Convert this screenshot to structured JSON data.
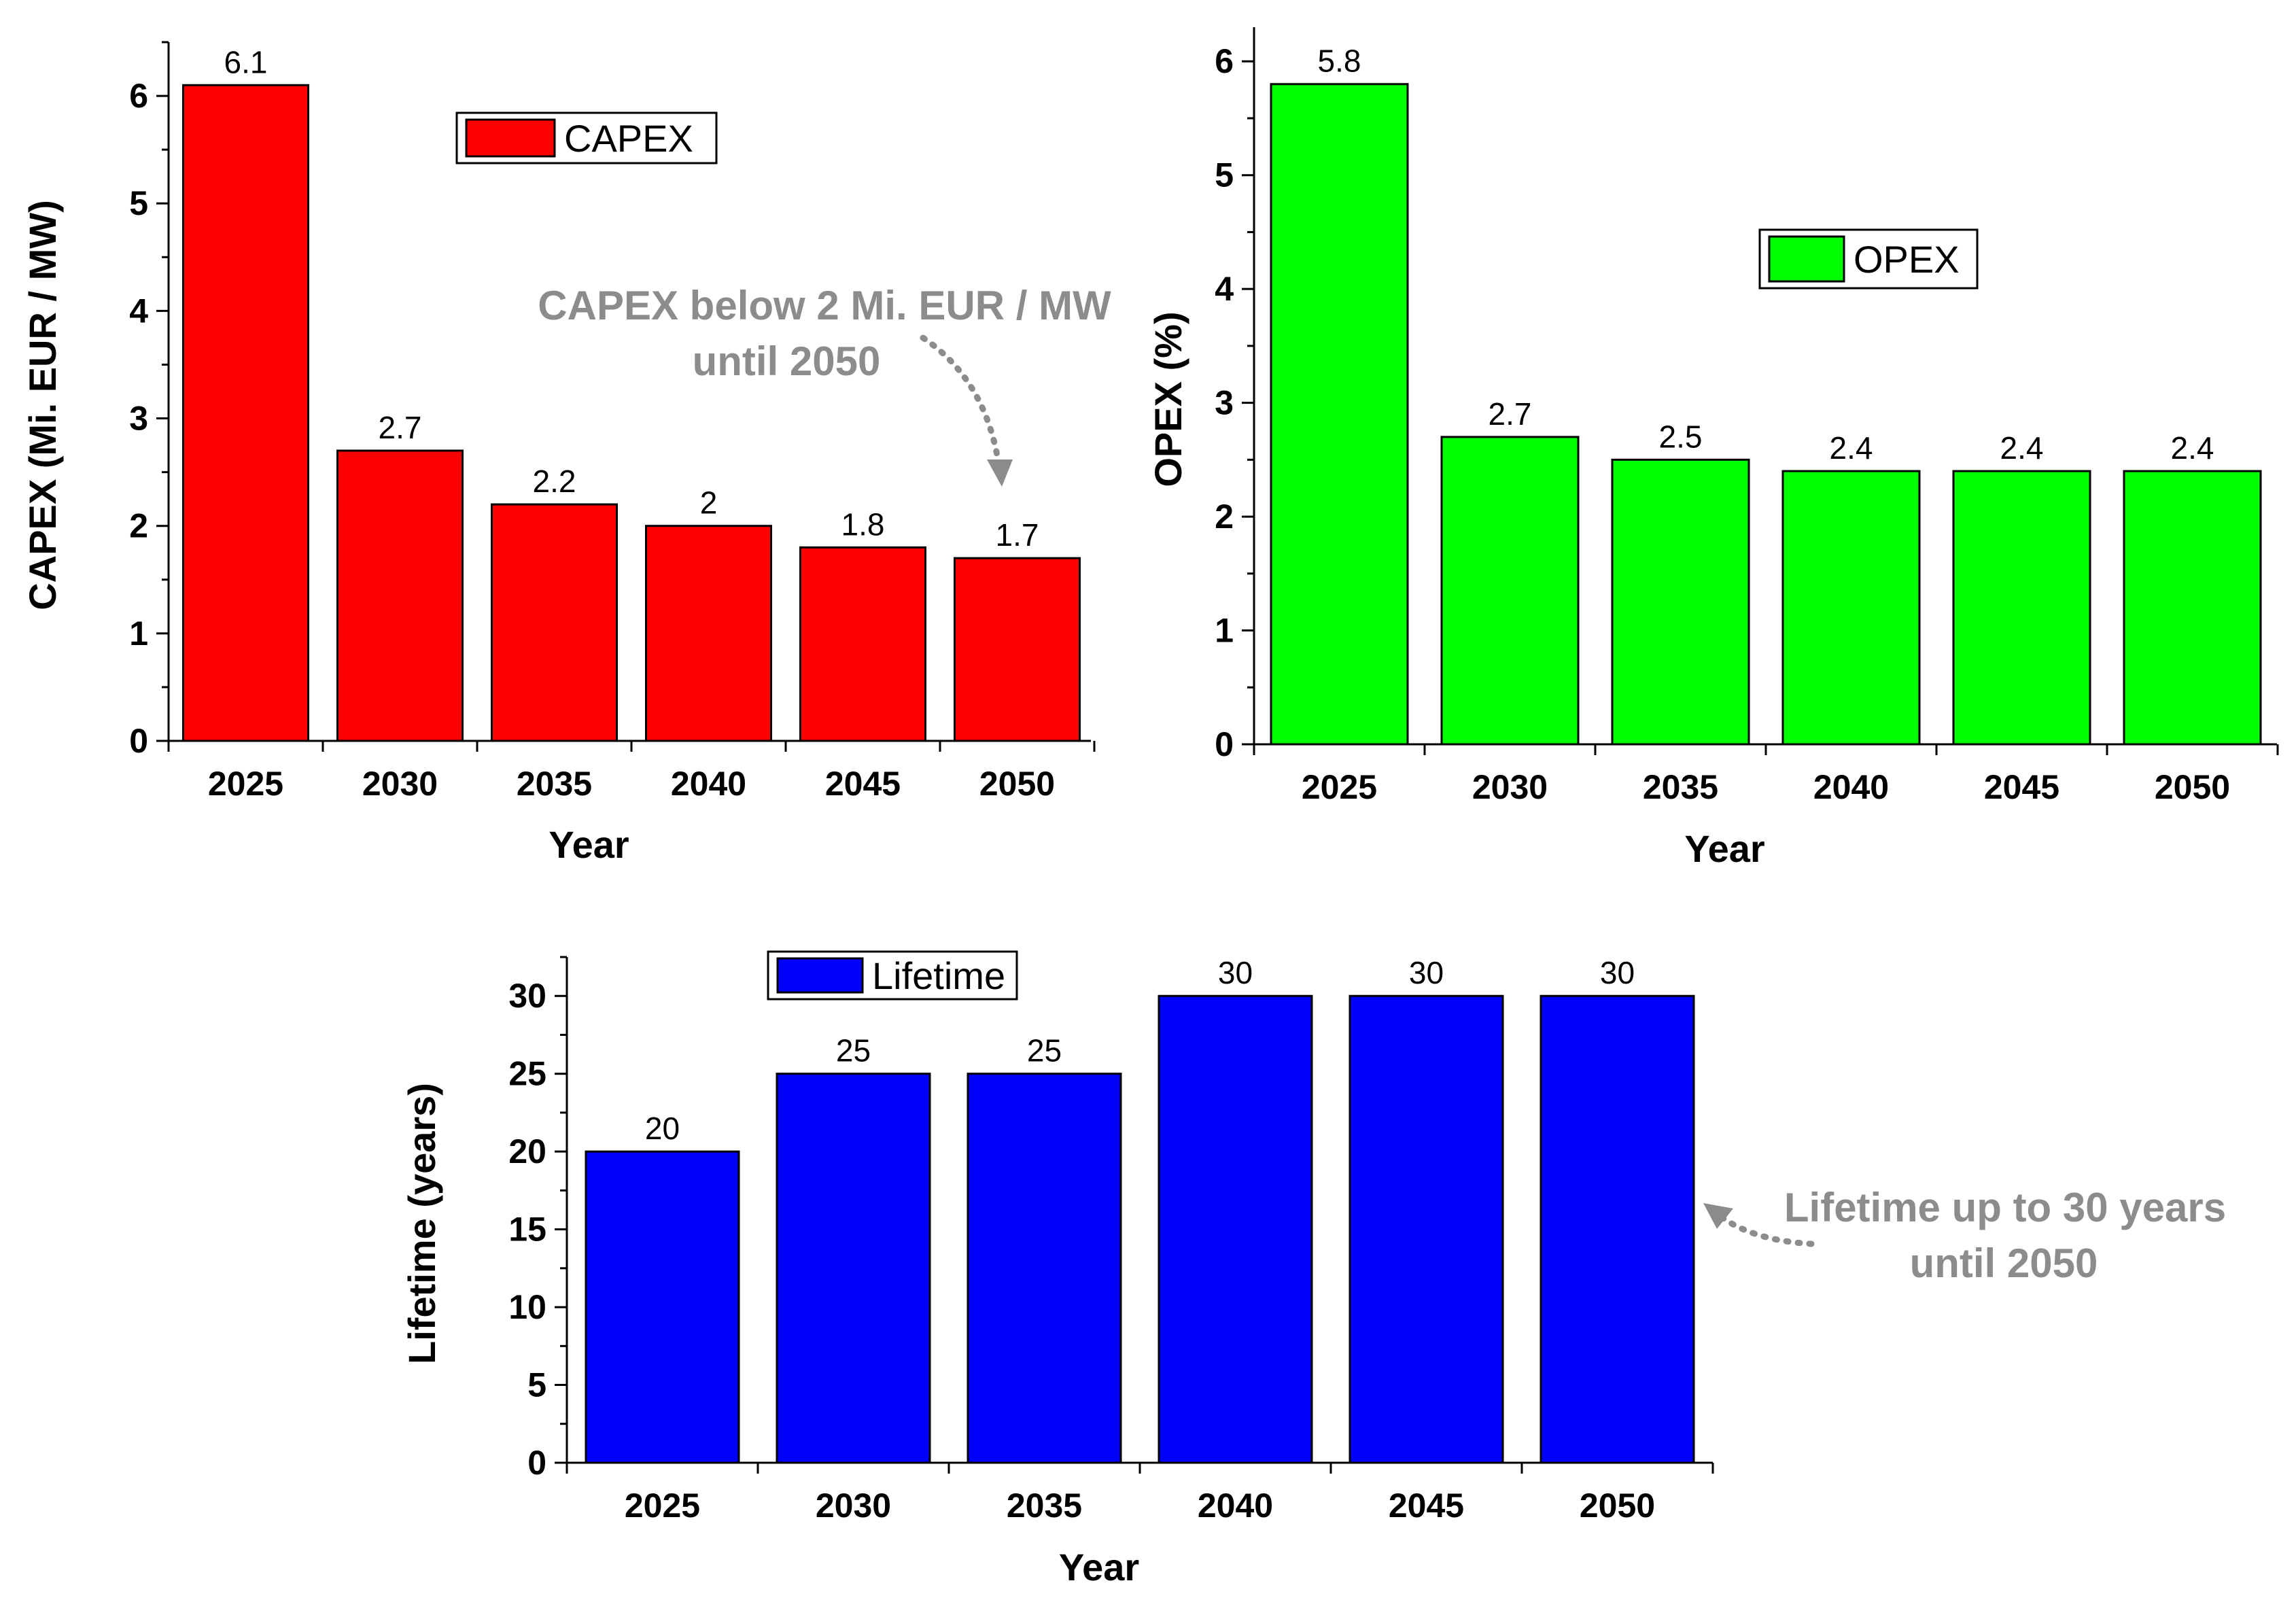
{
  "chart_data": [
    {
      "id": "capex",
      "type": "bar",
      "categories": [
        "2025",
        "2030",
        "2035",
        "2040",
        "2045",
        "2050"
      ],
      "values": [
        6.1,
        2.7,
        2.2,
        2,
        1.8,
        1.7
      ],
      "data_labels": [
        "6.1",
        "2.7",
        "2.2",
        "2",
        "1.8",
        "1.7"
      ],
      "xlabel": "Year",
      "ylabel": "CAPEX (Mi. EUR / MW)",
      "ylim": [
        0,
        6.5
      ],
      "yticks": [
        0,
        1,
        2,
        3,
        4,
        5,
        6
      ],
      "legend": [
        "CAPEX"
      ],
      "legend_position": "top-center",
      "color": "#ff0000",
      "grid": false,
      "annotation": [
        "CAPEX below 2 Mi. EUR / MW",
        "until 2050"
      ]
    },
    {
      "id": "opex",
      "type": "bar",
      "categories": [
        "2025",
        "2030",
        "2035",
        "2040",
        "2045",
        "2050"
      ],
      "values": [
        5.8,
        2.7,
        2.5,
        2.4,
        2.4,
        2.4
      ],
      "data_labels": [
        "5.8",
        "2.7",
        "2.5",
        "2.4",
        "2.4",
        "2.4"
      ],
      "xlabel": "Year",
      "ylabel": "OPEX (%)",
      "ylim": [
        0,
        6.3
      ],
      "yticks": [
        0,
        1,
        2,
        3,
        4,
        5,
        6
      ],
      "legend": [
        "OPEX"
      ],
      "legend_position": "center-right",
      "color": "#00ff00",
      "grid": false
    },
    {
      "id": "lifetime",
      "type": "bar",
      "categories": [
        "2025",
        "2030",
        "2035",
        "2040",
        "2045",
        "2050"
      ],
      "values": [
        20,
        25,
        25,
        30,
        30,
        30
      ],
      "data_labels": [
        "20",
        "25",
        "25",
        "30",
        "30",
        "30"
      ],
      "xlabel": "Year",
      "ylabel": "Lifetime (years)",
      "ylim": [
        0,
        32.5
      ],
      "yticks": [
        0,
        5,
        10,
        15,
        20,
        25,
        30
      ],
      "legend": [
        "Lifetime"
      ],
      "legend_position": "top-left",
      "color": "#0000ff",
      "grid": false,
      "annotation": [
        "Lifetime up to 30 years",
        "until 2050"
      ]
    }
  ]
}
